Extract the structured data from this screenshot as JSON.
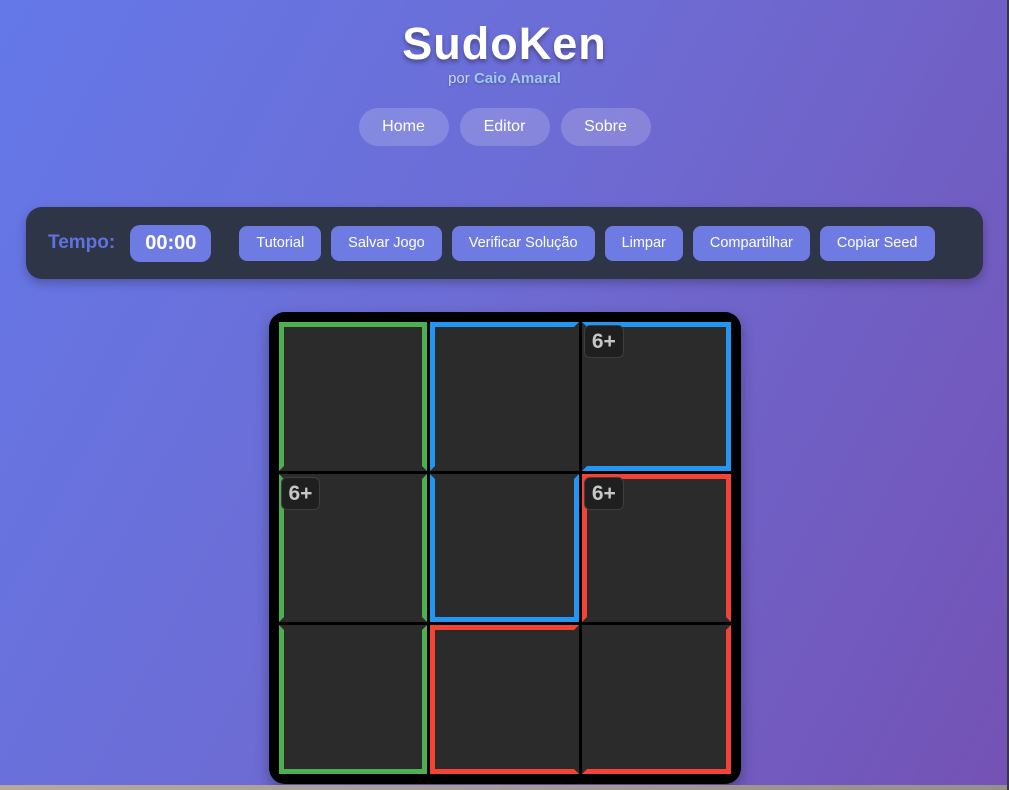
{
  "header": {
    "title": "SudoKen",
    "subtitle_prefix": "por",
    "subtitle_author": "Caio Amaral",
    "nav": [
      {
        "name": "nav-button-home",
        "label": "Home"
      },
      {
        "name": "nav-button-editor",
        "label": "Editor"
      },
      {
        "name": "nav-button-sobre",
        "label": "Sobre"
      }
    ]
  },
  "toolbar": {
    "timer_label": "Tempo:",
    "timer_value": "00:00",
    "buttons": [
      {
        "name": "tutorial-button",
        "label": "Tutorial"
      },
      {
        "name": "save-game-button",
        "label": "Salvar Jogo"
      },
      {
        "name": "verify-solution-button",
        "label": "Verificar Solução"
      },
      {
        "name": "clear-button",
        "label": "Limpar"
      },
      {
        "name": "share-button",
        "label": "Compartilhar"
      },
      {
        "name": "copy-seed-button",
        "label": "Copiar Seed"
      }
    ]
  },
  "board": {
    "size": 3,
    "cage_colors": {
      "green": "#4caf50",
      "blue": "#2196f3",
      "red": "#f44336"
    },
    "cages": [
      {
        "color": "green",
        "clue": "6+"
      },
      {
        "color": "blue",
        "clue": "6+"
      },
      {
        "color": "red",
        "clue": "6+"
      }
    ],
    "cells": [
      {
        "row": 0,
        "col": 0,
        "cage": "green",
        "value": "",
        "label": "",
        "borders": {
          "top": "green",
          "right": "green",
          "bottom": null,
          "left": "green"
        }
      },
      {
        "row": 0,
        "col": 1,
        "cage": "blue",
        "value": "",
        "label": "",
        "borders": {
          "top": "blue",
          "right": null,
          "bottom": null,
          "left": "blue"
        }
      },
      {
        "row": 0,
        "col": 2,
        "cage": "blue",
        "value": "",
        "label": "6+",
        "borders": {
          "top": "blue",
          "right": "blue",
          "bottom": "blue",
          "left": null
        }
      },
      {
        "row": 1,
        "col": 0,
        "cage": "green",
        "value": "",
        "label": "6+",
        "borders": {
          "top": null,
          "right": "green",
          "bottom": null,
          "left": "green"
        }
      },
      {
        "row": 1,
        "col": 1,
        "cage": "blue",
        "value": "",
        "label": "",
        "borders": {
          "top": null,
          "right": "blue",
          "bottom": "blue",
          "left": "blue"
        }
      },
      {
        "row": 1,
        "col": 2,
        "cage": "red",
        "value": "",
        "label": "6+",
        "borders": {
          "top": "red",
          "right": "red",
          "bottom": null,
          "left": "red"
        }
      },
      {
        "row": 2,
        "col": 0,
        "cage": "green",
        "value": "",
        "label": "",
        "borders": {
          "top": null,
          "right": "green",
          "bottom": "green",
          "left": "green"
        }
      },
      {
        "row": 2,
        "col": 1,
        "cage": "red",
        "value": "",
        "label": "",
        "borders": {
          "top": "red",
          "right": null,
          "bottom": "red",
          "left": "red"
        }
      },
      {
        "row": 2,
        "col": 2,
        "cage": "red",
        "value": "",
        "label": "",
        "borders": {
          "top": null,
          "right": "red",
          "bottom": "red",
          "left": null
        }
      }
    ]
  },
  "colors": {
    "background_gradient_start": "#6478e8",
    "background_gradient_end": "#7452b4",
    "toolbar_background": "#2d3546",
    "accent_button": "#6e7be2",
    "cell_background": "#2b2b2b"
  }
}
